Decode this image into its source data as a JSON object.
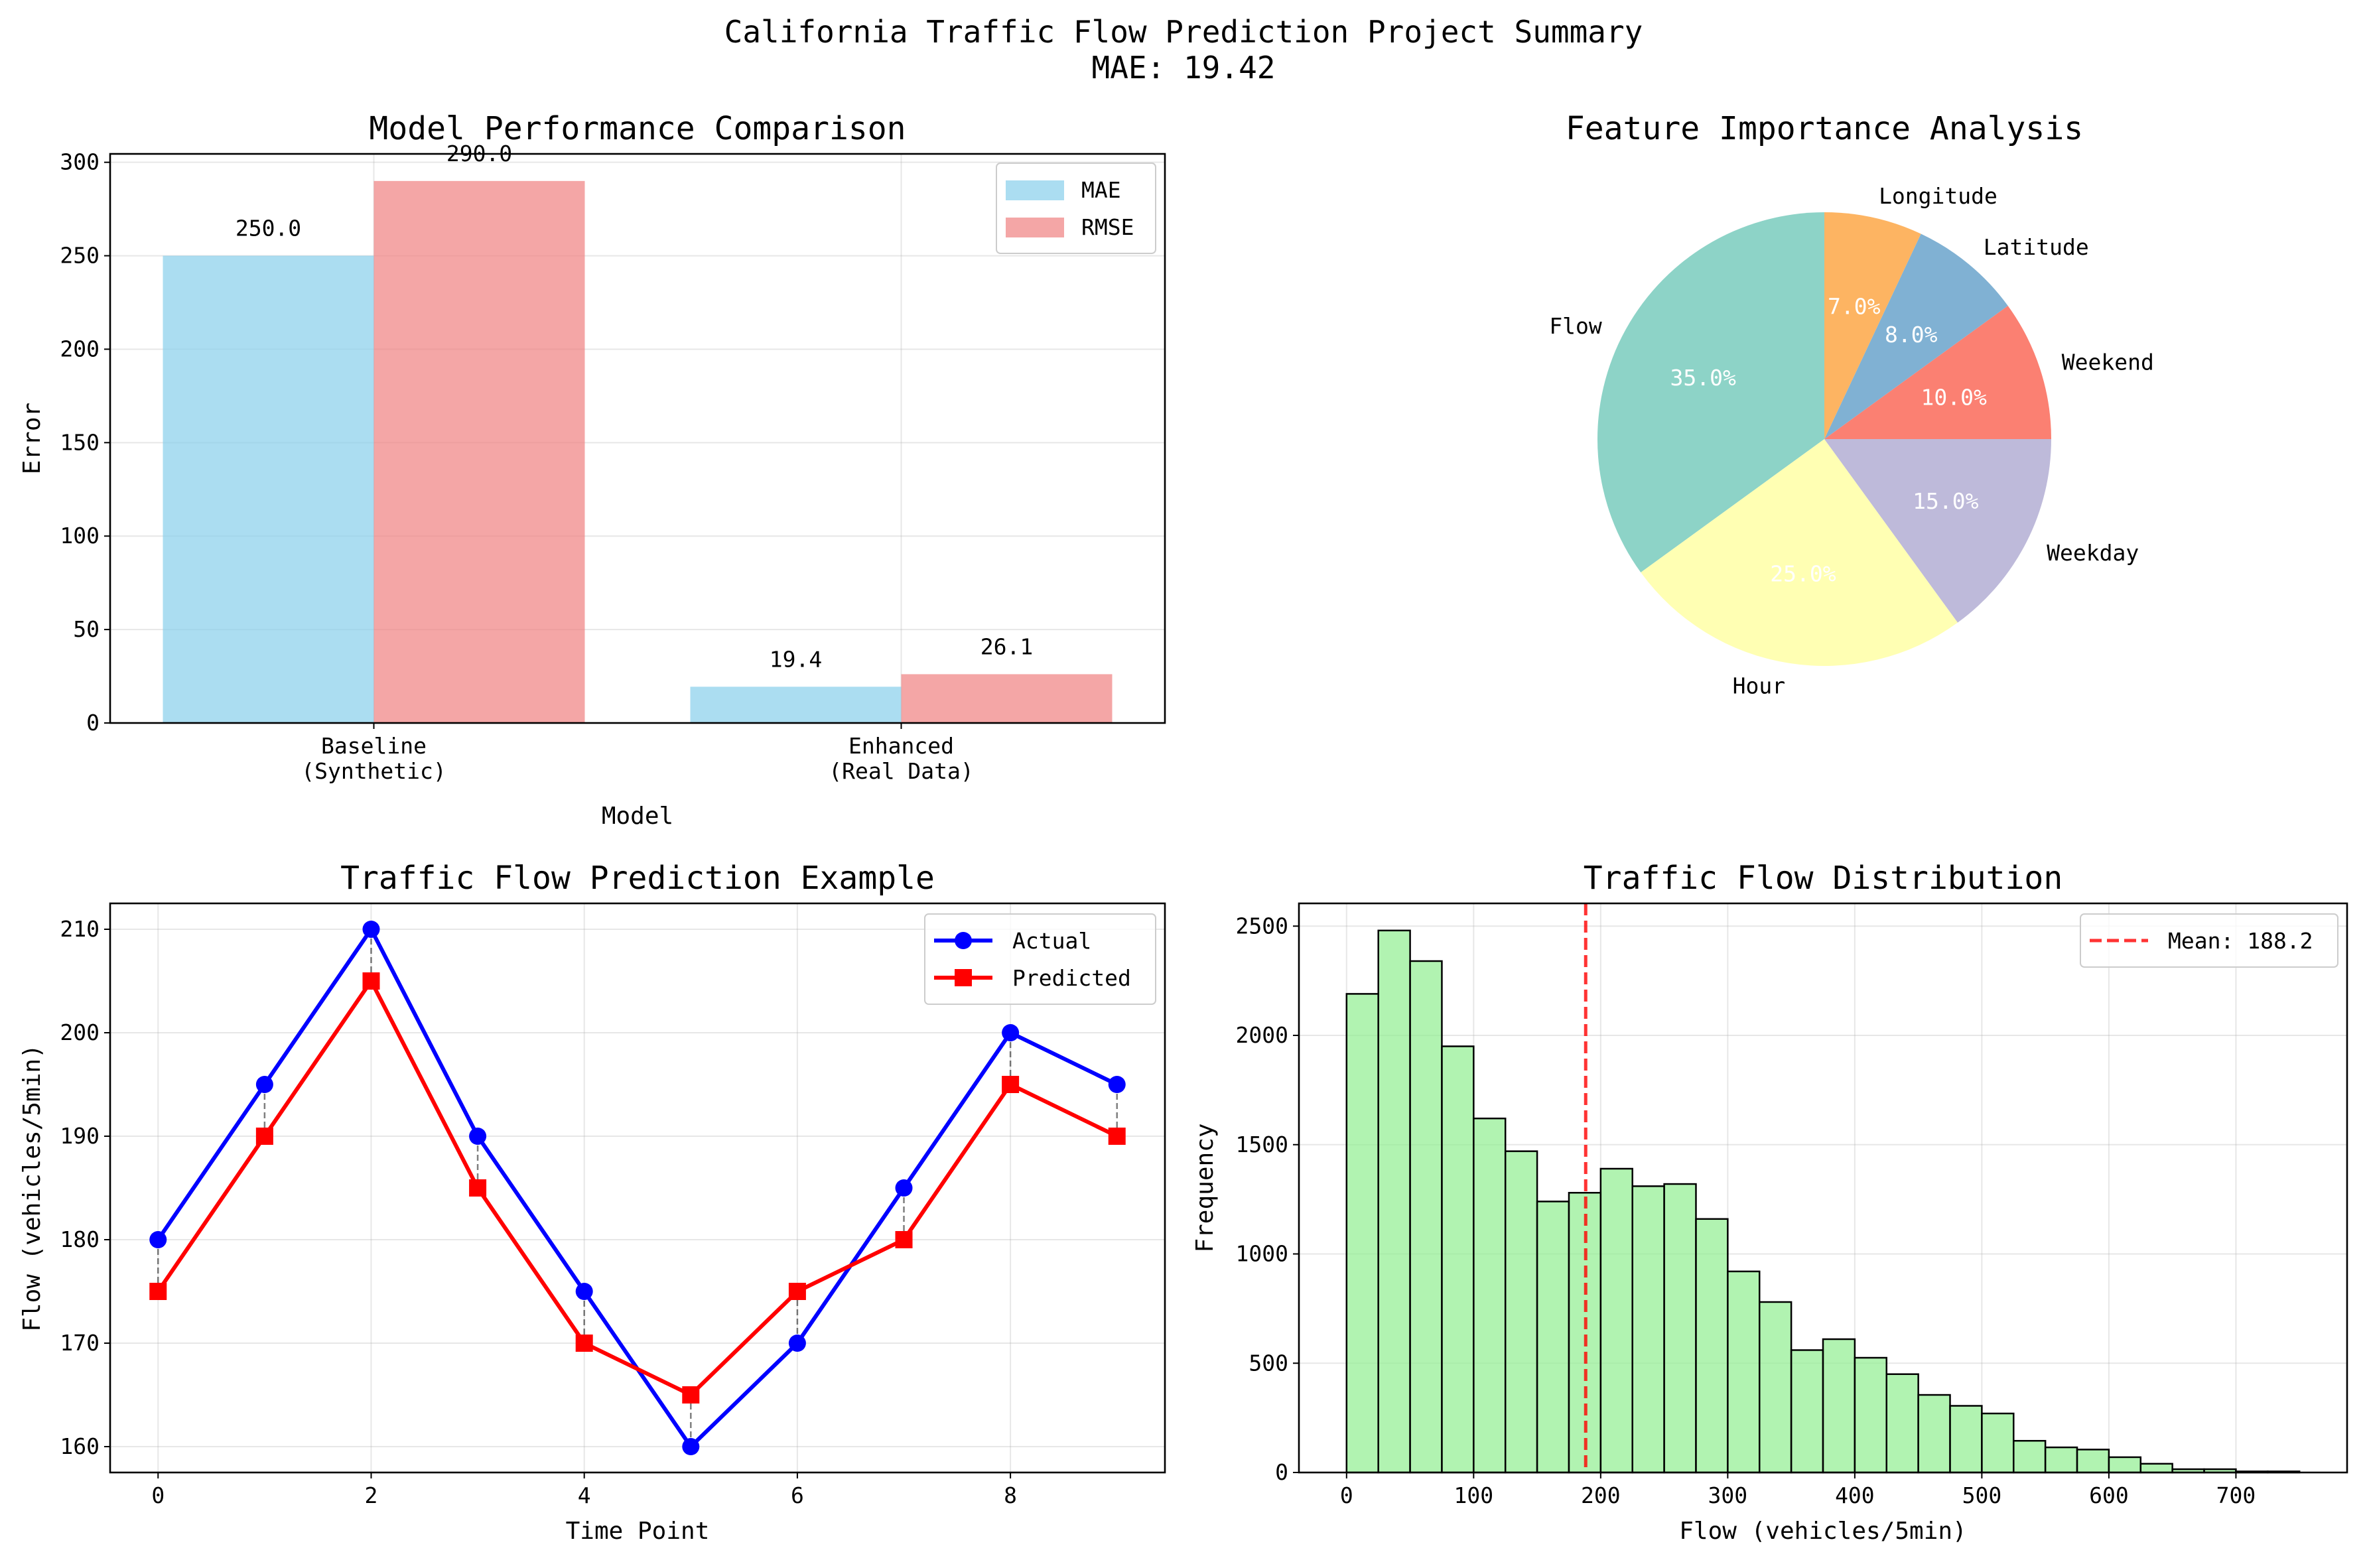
{
  "figure": {
    "title_line1": "California Traffic Flow Prediction Project Summary",
    "title_line2": "MAE: 19.42"
  },
  "chart_data": [
    {
      "type": "bar",
      "title": "Model Performance Comparison",
      "xlabel": "Model",
      "ylabel": "Error",
      "categories": [
        [
          "Baseline",
          "(Synthetic)"
        ],
        [
          "Enhanced",
          "(Real Data)"
        ]
      ],
      "series": [
        {
          "name": "MAE",
          "values": [
            250.0,
            19.4
          ],
          "color": "#87CEEB",
          "labels": [
            "250.0",
            "19.4"
          ]
        },
        {
          "name": "RMSE",
          "values": [
            290.0,
            26.1
          ],
          "color": "#F08080",
          "labels": [
            "290.0",
            "26.1"
          ]
        }
      ],
      "ylim": [
        0,
        304.5
      ],
      "yticks": [
        0,
        50,
        100,
        150,
        200,
        250,
        300
      ],
      "grid": true,
      "legend": "upper right"
    },
    {
      "type": "pie",
      "title": "Feature Importance Analysis",
      "slices": [
        {
          "label": "Flow",
          "value": 35.0,
          "pct": "35.0%",
          "color": "#8DD3C7"
        },
        {
          "label": "Hour",
          "value": 25.0,
          "pct": "25.0%",
          "color": "#FFFFB3"
        },
        {
          "label": "Weekday",
          "value": 15.0,
          "pct": "15.0%",
          "color": "#BEBADA"
        },
        {
          "label": "Weekend",
          "value": 10.0,
          "pct": "10.0%",
          "color": "#FB8072"
        },
        {
          "label": "Latitude",
          "value": 8.0,
          "pct": "8.0%",
          "color": "#80B1D3"
        },
        {
          "label": "Longitude",
          "value": 7.0,
          "pct": "7.0%",
          "color": "#FDB462"
        }
      ],
      "startangle_deg": 90,
      "direction": "counterclockwise"
    },
    {
      "type": "line",
      "title": "Traffic Flow Prediction Example",
      "xlabel": "Time Point",
      "ylabel": "Flow (vehicles/5min)",
      "x": [
        0,
        1,
        2,
        3,
        4,
        5,
        6,
        7,
        8,
        9
      ],
      "series": [
        {
          "name": "Actual",
          "values": [
            180,
            195,
            210,
            190,
            175,
            160,
            170,
            185,
            200,
            195
          ],
          "color": "#0000FF",
          "marker": "circle"
        },
        {
          "name": "Predicted",
          "values": [
            175,
            190,
            205,
            185,
            170,
            165,
            175,
            180,
            195,
            190
          ],
          "color": "#FF0000",
          "marker": "square"
        }
      ],
      "xlim": [
        -0.45,
        9.45
      ],
      "ylim": [
        157.5,
        212.5
      ],
      "xticks": [
        0,
        2,
        4,
        6,
        8
      ],
      "yticks": [
        160,
        170,
        180,
        190,
        200,
        210
      ],
      "grid": true,
      "legend": "upper right"
    },
    {
      "type": "bar",
      "subtype": "histogram",
      "title": "Traffic Flow Distribution",
      "xlabel": "Flow (vehicles/5min)",
      "ylabel": "Frequency",
      "bin_start": 0,
      "bin_width": 25,
      "counts": [
        2190,
        2480,
        2340,
        1950,
        1620,
        1470,
        1240,
        1280,
        1390,
        1310,
        1320,
        1160,
        920,
        780,
        560,
        610,
        525,
        450,
        355,
        305,
        270,
        145,
        115,
        105,
        70,
        40,
        15,
        15,
        5,
        5
      ],
      "color": "#90EE90",
      "mean": 188.2,
      "mean_label": "Mean: 188.2",
      "xlim": [
        -37.5,
        787.5
      ],
      "ylim": [
        0,
        2604
      ],
      "xticks": [
        0,
        100,
        200,
        300,
        400,
        500,
        600,
        700
      ],
      "yticks": [
        0,
        500,
        1000,
        1500,
        2000,
        2500
      ],
      "grid": true,
      "legend": "upper right"
    }
  ]
}
